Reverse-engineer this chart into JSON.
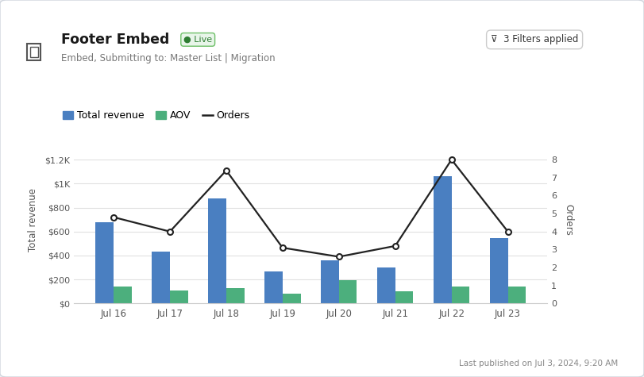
{
  "categories": [
    "Jul 16",
    "Jul 17",
    "Jul 18",
    "Jul 19",
    "Jul 20",
    "Jul 21",
    "Jul 22",
    "Jul 23"
  ],
  "total_revenue": [
    680,
    430,
    880,
    265,
    360,
    300,
    1060,
    545
  ],
  "aov": [
    140,
    110,
    130,
    80,
    195,
    100,
    140,
    140
  ],
  "orders": [
    4.8,
    4.0,
    7.4,
    3.1,
    2.6,
    3.2,
    8.0,
    4.0
  ],
  "bar_color_revenue": "#4a7fc1",
  "bar_color_aov": "#4caf7d",
  "line_color": "#222222",
  "background_color": "#f0f2f5",
  "card_color": "#ffffff",
  "title": "Footer Embed",
  "subtitle": "Embed, Submitting to: Master List | Migration",
  "live_label": "Live",
  "filter_label": "3 Filters applied",
  "legend_total_revenue": "Total revenue",
  "legend_aov": "AOV",
  "legend_orders": "Orders",
  "ylabel_left": "Total revenue",
  "ylabel_right": "Orders",
  "ylim_left": [
    0,
    1400
  ],
  "ylim_right": [
    0,
    9.33
  ],
  "yticks_left": [
    0,
    200,
    400,
    600,
    800,
    1000,
    1200
  ],
  "ytick_labels_left": [
    "$0",
    "$200",
    "$400",
    "$600",
    "$800",
    "$1K",
    "$1.2K"
  ],
  "yticks_right": [
    0,
    1,
    2,
    3,
    4,
    5,
    6,
    7,
    8
  ],
  "footer_text": "Last published on Jul 3, 2024, 9:20 AM",
  "bar_width": 0.32
}
